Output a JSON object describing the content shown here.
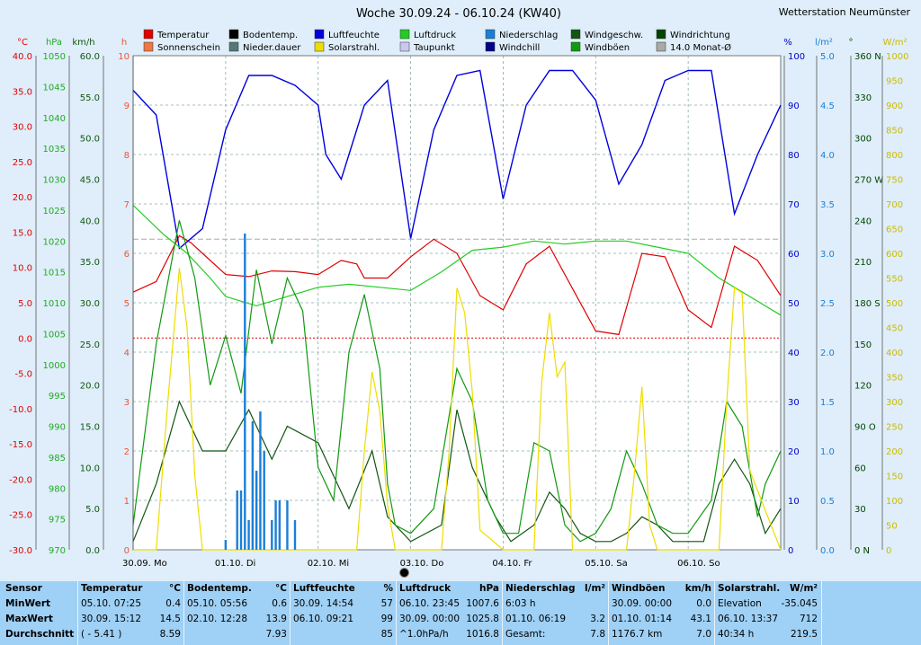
{
  "chart_data": {
    "type": "line",
    "title": "Woche 30.09.24 - 06.10.24 (KW40)",
    "station": "Wetterstation Neumünster",
    "x_days": [
      "30.09.  Mo",
      "01.10.  Di",
      "02.10.  Mi",
      "03.10.  Do",
      "04.10.  Fr",
      "05.10.  Sa",
      "06.10.  So"
    ],
    "legend": [
      {
        "label": "Temperatur",
        "color": "#e00000"
      },
      {
        "label": "Bodentemp.",
        "color": "#000000"
      },
      {
        "label": "Luftfeuchte",
        "color": "#0000dd"
      },
      {
        "label": "Luftdruck",
        "color": "#22cc22"
      },
      {
        "label": "Niederschlag",
        "color": "#1a7fd8"
      },
      {
        "label": "Windgeschw.",
        "color": "#115511"
      },
      {
        "label": "Windrichtung",
        "color": "#004400"
      },
      {
        "label": "Sonnenschein",
        "color": "#ee7744"
      },
      {
        "label": "Nieder.dauer",
        "color": "#557777"
      },
      {
        "label": "Solarstrahl.",
        "color": "#eedd00"
      },
      {
        "label": "Taupunkt",
        "color": "#c8c8f0"
      },
      {
        "label": "Windchill",
        "color": "#000088"
      },
      {
        "label": "Windböen",
        "color": "#119911"
      },
      {
        "label": "14.0 Monat-Ø",
        "color": "#aaaaaa"
      }
    ],
    "axes": {
      "temp": {
        "unit": "°C",
        "ticks": [
          "40.0",
          "35.0",
          "30.0",
          "25.0",
          "20.0",
          "15.0",
          "10.0",
          "5.0",
          "0.0",
          "-5.0",
          "-10.0",
          "-15.0",
          "-20.0",
          "-25.0",
          "-30.0"
        ]
      },
      "pressure": {
        "unit": "hPa",
        "ticks": [
          "1050",
          "1045",
          "1040",
          "1035",
          "1030",
          "1025",
          "1020",
          "1015",
          "1010",
          "1005",
          "1000",
          "995",
          "990",
          "985",
          "980",
          "975",
          "970"
        ]
      },
      "wind": {
        "unit": "km/h",
        "ticks": [
          "60.0",
          "55.0",
          "50.0",
          "45.0",
          "40.0",
          "35.0",
          "30.0",
          "25.0",
          "20.0",
          "15.0",
          "10.0",
          "5.0",
          "0.0"
        ]
      },
      "hours": {
        "unit": "h",
        "ticks": [
          "10",
          "9",
          "8",
          "7",
          "6",
          "5",
          "4",
          "3",
          "2",
          "1",
          "0"
        ]
      },
      "humidity": {
        "unit": "%",
        "ticks": [
          "100",
          "90",
          "80",
          "70",
          "60",
          "50",
          "40",
          "30",
          "20",
          "10",
          "0"
        ]
      },
      "rain": {
        "unit": "l/m²",
        "ticks": [
          "5.0",
          "4.5",
          "4.0",
          "3.5",
          "3.0",
          "2.5",
          "2.0",
          "1.5",
          "1.0",
          "0.5",
          "0.0"
        ]
      },
      "direction": {
        "unit": "°",
        "ticks": [
          "360 N",
          "330",
          "300",
          "270 W",
          "240",
          "210",
          "180 S",
          "150",
          "120",
          "90  O",
          "60",
          "30",
          "0  N"
        ]
      },
      "solar": {
        "unit": "W/m²",
        "ticks": [
          "1000",
          "950",
          "900",
          "850",
          "800",
          "750",
          "700",
          "650",
          "600",
          "550",
          "500",
          "450",
          "400",
          "350",
          "300",
          "250",
          "200",
          "150",
          "100",
          "50",
          "0"
        ]
      }
    },
    "series": [
      {
        "name": "Temperatur",
        "unit": "°C",
        "x": [
          0,
          6,
          12,
          15,
          18,
          24,
          30,
          36,
          42,
          48,
          54,
          58,
          60,
          66,
          72,
          78,
          84,
          90,
          96,
          102,
          108,
          114,
          120,
          126,
          132,
          138,
          144,
          150,
          156,
          162,
          168
        ],
        "values": [
          6.5,
          8,
          14.5,
          13.5,
          12,
          9,
          8.7,
          9.5,
          9.4,
          9,
          11,
          10.5,
          8.5,
          8.5,
          11.5,
          14,
          12,
          6,
          4,
          10.5,
          13,
          7,
          1,
          0.5,
          12,
          11.5,
          4,
          1.5,
          13,
          11,
          6
        ]
      },
      {
        "name": "Luftfeuchte",
        "unit": "%",
        "x": [
          0,
          6,
          12,
          18,
          24,
          30,
          36,
          42,
          48,
          50,
          54,
          58,
          60,
          66,
          72,
          78,
          84,
          90,
          96,
          102,
          108,
          114,
          120,
          126,
          132,
          138,
          144,
          150,
          156,
          162,
          168
        ],
        "values": [
          93,
          88,
          61,
          65,
          85,
          96,
          96,
          94,
          90,
          80,
          75,
          85,
          90,
          95,
          63,
          85,
          96,
          97,
          71,
          90,
          97,
          97,
          91,
          74,
          82,
          95,
          97,
          97,
          68,
          80,
          90
        ]
      },
      {
        "name": "Luftdruck",
        "unit": "hPa",
        "x": [
          0,
          8,
          14,
          20,
          24,
          32,
          40,
          48,
          56,
          64,
          72,
          80,
          88,
          96,
          104,
          112,
          120,
          128,
          136,
          144,
          152,
          160,
          168
        ],
        "values": [
          1025.8,
          1021,
          1018,
          1014,
          1011,
          1009.5,
          1011,
          1012.5,
          1013,
          1012.5,
          1012,
          1015,
          1018.5,
          1019,
          1020,
          1019.5,
          1020,
          1020,
          1019,
          1018,
          1014,
          1011,
          1008
        ]
      },
      {
        "name": "Windgeschw.",
        "unit": "km/h",
        "x": [
          0,
          6,
          12,
          18,
          24,
          30,
          36,
          40,
          48,
          56,
          62,
          66,
          72,
          80,
          84,
          88,
          94,
          98,
          104,
          108,
          112,
          116,
          120,
          124,
          128,
          132,
          136,
          140,
          144,
          148,
          152,
          156,
          160,
          164,
          168
        ],
        "values": [
          1,
          8,
          18,
          12,
          12,
          17,
          11,
          15,
          13,
          5,
          12,
          4,
          1,
          3,
          17,
          10,
          4,
          1,
          3,
          7,
          5,
          2,
          1,
          1,
          2,
          4,
          3,
          1,
          1,
          1,
          8,
          11,
          8,
          2,
          5
        ]
      },
      {
        "name": "Windböen",
        "unit": "km/h",
        "x": [
          0,
          6,
          12,
          16,
          20,
          24,
          28,
          32,
          36,
          40,
          44,
          48,
          52,
          56,
          60,
          64,
          66,
          68,
          72,
          78,
          84,
          88,
          92,
          96,
          100,
          104,
          108,
          112,
          116,
          120,
          124,
          128,
          132,
          136,
          140,
          144,
          150,
          154,
          158,
          162,
          164,
          168
        ],
        "values": [
          3,
          25,
          40,
          33,
          20,
          26,
          19,
          34,
          25,
          33,
          29,
          10,
          6,
          24,
          31,
          22,
          8,
          3,
          2,
          5,
          22,
          18,
          6,
          2,
          2,
          13,
          12,
          3,
          1,
          2,
          5,
          12,
          8,
          3,
          2,
          2,
          6,
          18,
          15,
          4,
          8,
          12
        ]
      },
      {
        "name": "Solarstrahl.",
        "unit": "W/m²",
        "x": [
          0,
          6,
          9,
          12,
          14,
          16,
          18,
          24,
          30,
          40,
          58,
          60,
          62,
          64,
          66,
          68,
          70,
          72,
          80,
          82,
          84,
          86,
          88,
          90,
          96,
          104,
          106,
          108,
          110,
          112,
          114,
          120,
          128,
          130,
          132,
          134,
          136,
          140,
          144,
          152,
          154,
          156,
          158,
          160,
          168
        ],
        "values": [
          0,
          0,
          300,
          570,
          450,
          150,
          0,
          0,
          0,
          0,
          0,
          200,
          360,
          280,
          90,
          0,
          0,
          0,
          0,
          200,
          530,
          480,
          320,
          40,
          0,
          0,
          340,
          480,
          350,
          380,
          0,
          0,
          0,
          150,
          330,
          50,
          0,
          0,
          0,
          0,
          300,
          530,
          520,
          160,
          0
        ]
      },
      {
        "name": "Niederschlag",
        "unit": "l/m²",
        "x": [
          24,
          27,
          28,
          29,
          30,
          31,
          32,
          33,
          34,
          36,
          37,
          38,
          40,
          42
        ],
        "values": [
          0.1,
          0.6,
          0.6,
          3.2,
          0.3,
          1.3,
          0.8,
          1.4,
          1.0,
          0.3,
          0.5,
          0.5,
          0.5,
          0.3
        ]
      }
    ],
    "stats": {
      "headers": [
        "Sensor",
        "Temperatur",
        "Bodentemp.",
        "Luftfeuchte",
        "Luftdruck",
        "Niederschlag",
        "Windböen",
        "Solarstrahl."
      ],
      "units": [
        "",
        "°C",
        "°C",
        "%",
        "hPa",
        "l/m²",
        "km/h",
        "W/m²"
      ],
      "row_labels": [
        "MinWert",
        "MaxWert",
        "Durchschnitt"
      ],
      "rows": [
        [
          [
            "05.10.  07:25",
            "0.4"
          ],
          [
            "05.10.  05:56",
            "0.6"
          ],
          [
            "30.09.  14:54",
            "57"
          ],
          [
            "06.10.  23:45",
            "1007.6"
          ],
          [
            "6:03 h",
            ""
          ],
          [
            "30.09.  00:00",
            "0.0"
          ],
          [
            "Elevation",
            "-35.045"
          ]
        ],
        [
          [
            "30.09.  15:12",
            "14.5"
          ],
          [
            "02.10.  12:28",
            "13.9"
          ],
          [
            "06.10.  09:21",
            "99"
          ],
          [
            "30.09.  00:00",
            "1025.8"
          ],
          [
            "01.10.  06:19",
            "3.2"
          ],
          [
            "01.10.  01:14",
            "43.1"
          ],
          [
            "06.10.  13:37",
            "712"
          ]
        ],
        [
          [
            "( - 5.41 )",
            "8.59"
          ],
          [
            "",
            "7.93"
          ],
          [
            "",
            "85"
          ],
          [
            "^1.0hPa/h",
            "1016.8"
          ],
          [
            "Gesamt:",
            "7.8"
          ],
          [
            "1176.7 km",
            "7.0"
          ],
          [
            "40:34 h",
            "219.5"
          ]
        ]
      ]
    }
  }
}
